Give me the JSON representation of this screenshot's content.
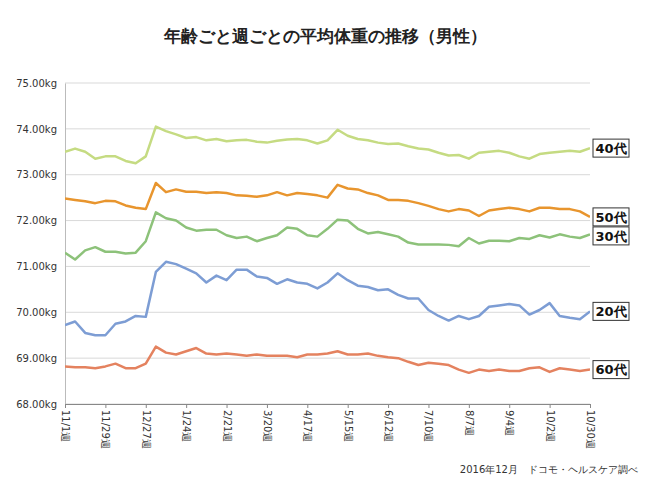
{
  "chart_data": {
    "type": "line",
    "title": "年齢ごと週ごとの平均体重の推移（男性）",
    "source": "2016年12月　ドコモ・ヘルスケア調べ",
    "categories": [
      "11/1週",
      null,
      null,
      null,
      "11/29週",
      null,
      null,
      null,
      "12/27週",
      null,
      null,
      null,
      "1/24週",
      null,
      null,
      null,
      "2/21週",
      null,
      null,
      null,
      "3/20週",
      null,
      null,
      null,
      "4/17週",
      null,
      null,
      null,
      "5/15週",
      null,
      null,
      null,
      "6/12週",
      null,
      null,
      null,
      "7/10週",
      null,
      null,
      null,
      "8/7週",
      null,
      null,
      null,
      "9/4週",
      null,
      null,
      null,
      "10/2週",
      null,
      null,
      null,
      "10/30週"
    ],
    "ylim": [
      68,
      75
    ],
    "yticks": [
      {
        "value": 68,
        "label": "68.00kg"
      },
      {
        "value": 69,
        "label": "69.00kg"
      },
      {
        "value": 70,
        "label": "70.00kg"
      },
      {
        "value": 71,
        "label": "71.00kg"
      },
      {
        "value": 72,
        "label": "72.00kg"
      },
      {
        "value": 73,
        "label": "73.00kg"
      },
      {
        "value": 74,
        "label": "74.00kg"
      },
      {
        "value": 75,
        "label": "75.00kg"
      }
    ],
    "grid": true,
    "series": [
      {
        "name": "40代",
        "color": "#c5db82",
        "values": [
          73.5,
          73.57,
          73.5,
          73.35,
          73.4,
          73.4,
          73.3,
          73.25,
          73.4,
          74.05,
          73.95,
          73.88,
          73.8,
          73.82,
          73.75,
          73.78,
          73.73,
          73.75,
          73.76,
          73.72,
          73.7,
          73.74,
          73.77,
          73.78,
          73.75,
          73.68,
          73.75,
          73.98,
          73.85,
          73.78,
          73.75,
          73.7,
          73.67,
          73.68,
          73.62,
          73.57,
          73.55,
          73.48,
          73.42,
          73.43,
          73.35,
          73.48,
          73.5,
          73.52,
          73.48,
          73.4,
          73.35,
          73.45,
          73.48,
          73.5,
          73.52,
          73.5,
          73.58
        ]
      },
      {
        "name": "50代",
        "color": "#e8952e",
        "values": [
          72.48,
          72.45,
          72.42,
          72.38,
          72.43,
          72.42,
          72.33,
          72.28,
          72.25,
          72.82,
          72.62,
          72.68,
          72.63,
          72.63,
          72.6,
          72.62,
          72.6,
          72.55,
          72.54,
          72.52,
          72.55,
          72.62,
          72.55,
          72.6,
          72.58,
          72.55,
          72.5,
          72.78,
          72.7,
          72.68,
          72.6,
          72.55,
          72.45,
          72.45,
          72.43,
          72.38,
          72.32,
          72.25,
          72.2,
          72.25,
          72.22,
          72.1,
          72.22,
          72.25,
          72.28,
          72.25,
          72.2,
          72.28,
          72.28,
          72.25,
          72.25,
          72.2,
          72.08
        ]
      },
      {
        "name": "30代",
        "color": "#8dc27a",
        "values": [
          71.3,
          71.15,
          71.35,
          71.42,
          71.32,
          71.32,
          71.28,
          71.3,
          71.55,
          72.18,
          72.05,
          72.0,
          71.85,
          71.78,
          71.8,
          71.8,
          71.68,
          71.62,
          71.65,
          71.55,
          71.62,
          71.68,
          71.85,
          71.82,
          71.68,
          71.65,
          71.82,
          72.02,
          72.0,
          71.82,
          71.72,
          71.75,
          71.7,
          71.65,
          71.52,
          71.48,
          71.48,
          71.48,
          71.47,
          71.44,
          71.62,
          71.5,
          71.56,
          71.56,
          71.55,
          71.62,
          71.6,
          71.68,
          71.63,
          71.7,
          71.65,
          71.62,
          71.7
        ]
      },
      {
        "name": "20代",
        "color": "#7d9dd4",
        "values": [
          69.72,
          69.8,
          69.55,
          69.5,
          69.5,
          69.75,
          69.8,
          69.92,
          69.9,
          70.88,
          71.1,
          71.05,
          70.95,
          70.85,
          70.65,
          70.8,
          70.7,
          70.93,
          70.93,
          70.78,
          70.75,
          70.62,
          70.72,
          70.65,
          70.62,
          70.52,
          70.65,
          70.85,
          70.7,
          70.58,
          70.55,
          70.48,
          70.5,
          70.38,
          70.3,
          70.3,
          70.05,
          69.92,
          69.82,
          69.92,
          69.85,
          69.92,
          70.12,
          70.15,
          70.18,
          70.15,
          69.95,
          70.05,
          70.2,
          69.92,
          69.88,
          69.85,
          70.02
        ]
      },
      {
        "name": "60代",
        "color": "#e4825f",
        "values": [
          68.82,
          68.8,
          68.8,
          68.78,
          68.82,
          68.88,
          68.78,
          68.78,
          68.88,
          69.25,
          69.12,
          69.08,
          69.15,
          69.22,
          69.1,
          69.08,
          69.1,
          69.08,
          69.05,
          69.08,
          69.05,
          69.05,
          69.05,
          69.02,
          69.08,
          69.08,
          69.1,
          69.15,
          69.08,
          69.08,
          69.1,
          69.05,
          69.02,
          69.0,
          68.92,
          68.85,
          68.9,
          68.88,
          68.85,
          68.75,
          68.68,
          68.75,
          68.72,
          68.75,
          68.72,
          68.72,
          68.78,
          68.8,
          68.7,
          68.78,
          68.75,
          68.72,
          68.75
        ]
      }
    ]
  }
}
